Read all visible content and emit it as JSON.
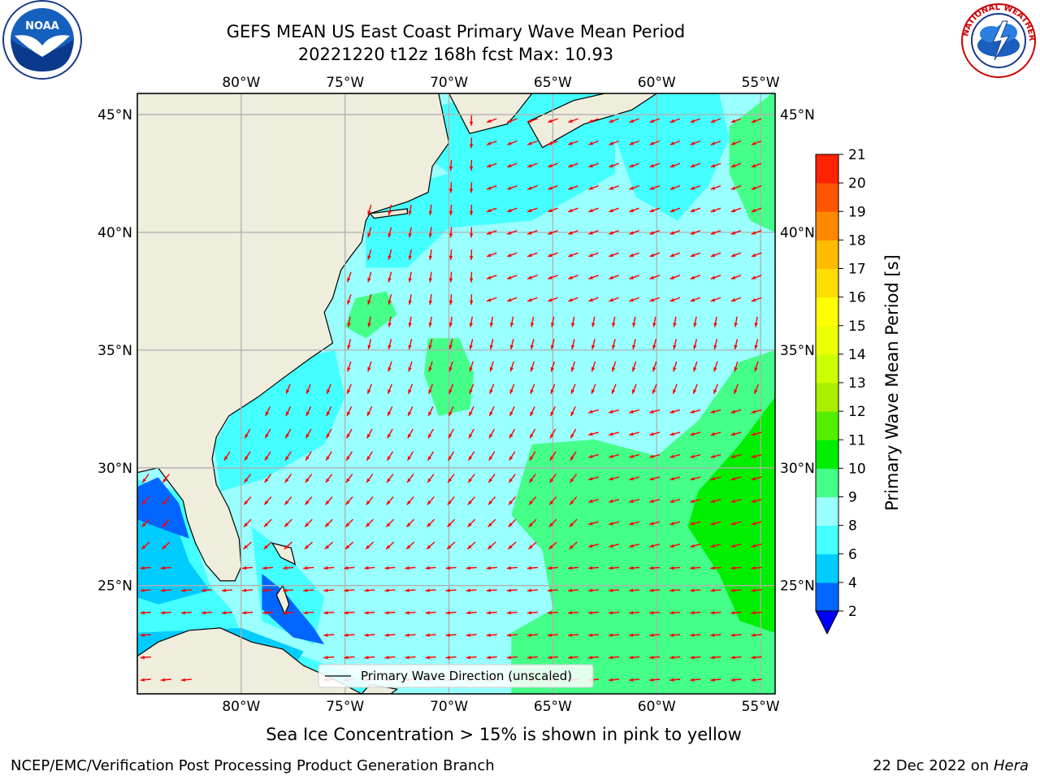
{
  "header": {
    "title_line1": "GEFS MEAN US East Coast Primary Wave Mean Period",
    "title_line2": "20221220 t12z 168h fcst   Max: 10.93"
  },
  "map": {
    "lon_labels": [
      "80°W",
      "75°W",
      "70°W",
      "65°W",
      "60°W",
      "55°W"
    ],
    "lat_labels": [
      "45°N",
      "40°N",
      "35°N",
      "30°N",
      "25°N"
    ],
    "lon_range": [
      -85,
      -54.3
    ],
    "lat_range": [
      20.4,
      45.9
    ],
    "legend_label": "Primary Wave Direction (unscaled)",
    "arrow_color": "#ff0000",
    "land_color": "#efeddc",
    "grid_color": "#b0b0b0"
  },
  "colorbar": {
    "label": "Primary Wave Mean Period [s]",
    "ticks": [
      "2",
      "4",
      "6",
      "8",
      "9",
      "10",
      "11",
      "12",
      "13",
      "14",
      "15",
      "16",
      "17",
      "18",
      "19",
      "20",
      "21"
    ],
    "colors": [
      "#0066ff",
      "#00ccff",
      "#44ffff",
      "#99ffff",
      "#44ff88",
      "#00ee00",
      "#55ee00",
      "#aaee00",
      "#ccff00",
      "#eeff00",
      "#ffff00",
      "#ffdd00",
      "#ffbb00",
      "#ff8800",
      "#ff5500",
      "#ff2200"
    ],
    "under_color": "#0000ff",
    "over_color": "#ff0000"
  },
  "caption": "Sea Ice Concentration > 15% is shown in pink to yellow",
  "footer": {
    "left": "NCEP/EMC/Verification Post Processing Product Generation Branch",
    "date": "22 Dec 2022 on ",
    "host": "Hera"
  },
  "logos": {
    "noaa": "NOAA",
    "nws_ring": "NATIONAL WEATHER SERVICE"
  }
}
